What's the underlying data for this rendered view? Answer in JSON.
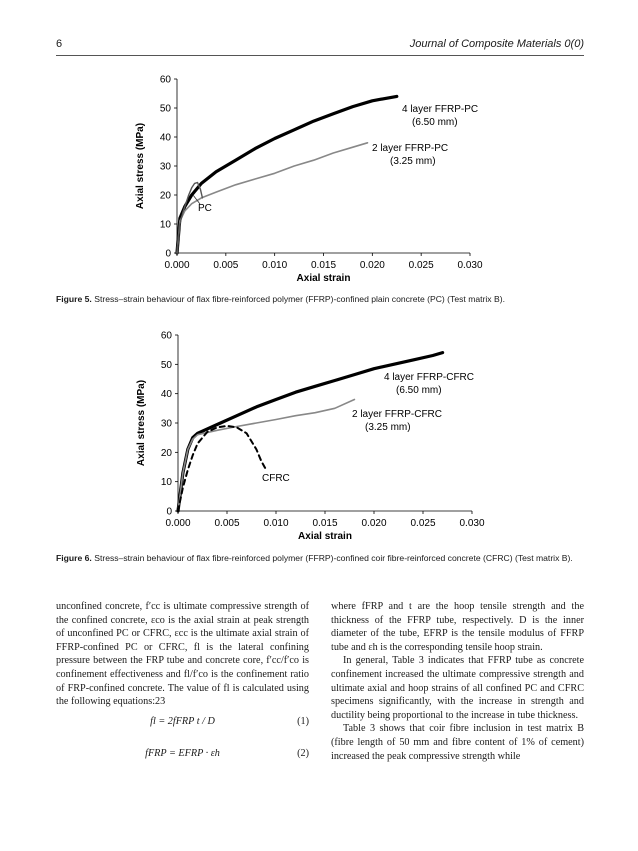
{
  "header": {
    "page_number": "6",
    "journal": "Journal of Composite Materials 0(0)"
  },
  "figure5": {
    "caption_label": "Figure 5.",
    "caption_text": "Stress–strain behaviour of flax fibre-reinforced polymer (FFRP)-confined plain concrete (PC) (Test matrix B).",
    "chart_data": {
      "type": "line",
      "xlabel": "Axial strain",
      "ylabel": "Axial stress (MPa)",
      "xlim": [
        0,
        0.03
      ],
      "ylim": [
        0,
        60
      ],
      "xticks": [
        "0.000",
        "0.005",
        "0.010",
        "0.015",
        "0.020",
        "0.025",
        "0.030"
      ],
      "yticks": [
        "0",
        "10",
        "20",
        "30",
        "40",
        "50",
        "60"
      ],
      "grid": false,
      "series": [
        {
          "name": "4 layer FFRP-PC",
          "label_line2": "(6.50 mm)",
          "color": "#000000",
          "style": "thick",
          "x": [
            0,
            0.0003,
            0.0008,
            0.0015,
            0.0025,
            0.004,
            0.006,
            0.008,
            0.01,
            0.012,
            0.014,
            0.016,
            0.018,
            0.02,
            0.0225
          ],
          "y": [
            0,
            12,
            16,
            20,
            24,
            28,
            32,
            36,
            39.5,
            42.5,
            45.5,
            48,
            50.5,
            52.5,
            54
          ]
        },
        {
          "name": "2 layer FFRP-PC",
          "label_line2": "(3.25 mm)",
          "color": "#888888",
          "style": "medium",
          "x": [
            0,
            0.0003,
            0.0008,
            0.0015,
            0.0025,
            0.004,
            0.006,
            0.008,
            0.01,
            0.012,
            0.014,
            0.016,
            0.018,
            0.0195
          ],
          "y": [
            0,
            11,
            14.5,
            17,
            19,
            21,
            23.5,
            25.5,
            27.5,
            30,
            32,
            34.5,
            36.5,
            38
          ]
        },
        {
          "name": "PC",
          "color": "#555555",
          "style": "thin",
          "x": [
            0,
            0.0003,
            0.0006,
            0.0009,
            0.0012,
            0.0015,
            0.0018,
            0.0021,
            0.0024,
            0.0026
          ],
          "y": [
            0,
            10,
            14,
            17,
            20,
            22.5,
            24,
            24.3,
            22,
            19
          ]
        }
      ]
    }
  },
  "figure6": {
    "caption_label": "Figure 6.",
    "caption_text": "Stress–strain behaviour of flax fibre-reinforced polymer (FFRP)-confined coir fibre-reinforced concrete (CFRC) (Test matrix B).",
    "chart_data": {
      "type": "line",
      "xlabel": "Axial strain",
      "ylabel": "Axial stress (MPa)",
      "xlim": [
        0,
        0.03
      ],
      "ylim": [
        0,
        60
      ],
      "xticks": [
        "0.000",
        "0.005",
        "0.010",
        "0.015",
        "0.020",
        "0.025",
        "0.030"
      ],
      "yticks": [
        "0",
        "10",
        "20",
        "30",
        "40",
        "50",
        "60"
      ],
      "grid": false,
      "series": [
        {
          "name": "4 layer FFRP-CFRC",
          "label_line2": "(6.50 mm)",
          "color": "#000000",
          "style": "thick",
          "x": [
            0,
            0.0005,
            0.001,
            0.0015,
            0.002,
            0.004,
            0.006,
            0.008,
            0.01,
            0.012,
            0.014,
            0.016,
            0.018,
            0.02,
            0.022,
            0.024,
            0.026,
            0.027
          ],
          "y": [
            0,
            13,
            21,
            25,
            26.5,
            29.5,
            32.5,
            35.5,
            38,
            40.5,
            42.5,
            44.5,
            46.5,
            48.5,
            50,
            51.5,
            53,
            54
          ]
        },
        {
          "name": "2 layer FFRP-CFRC",
          "label_line2": "(3.25 mm)",
          "color": "#888888",
          "style": "medium",
          "x": [
            0,
            0.0005,
            0.001,
            0.0015,
            0.002,
            0.004,
            0.006,
            0.008,
            0.01,
            0.012,
            0.014,
            0.016,
            0.018
          ],
          "y": [
            0,
            13,
            21,
            24.5,
            26,
            27.5,
            28.8,
            30,
            31.2,
            32.5,
            33.5,
            35,
            38
          ]
        },
        {
          "name": "CFRC",
          "color": "#000000",
          "style": "dashed",
          "x": [
            0,
            0.0005,
            0.001,
            0.0015,
            0.002,
            0.003,
            0.004,
            0.005,
            0.006,
            0.007,
            0.008,
            0.0085,
            0.009
          ],
          "y": [
            0,
            8,
            14,
            19,
            23,
            27,
            28.5,
            29,
            28.5,
            26.5,
            21,
            17,
            14
          ]
        }
      ]
    }
  },
  "body_left": {
    "para1": "unconfined concrete, f′cc is ultimate compressive strength of the confined concrete, εco is the axial strain at peak strength of unconfined PC or CFRC, εcc is the ultimate axial strain of FFRP-confined PC or CFRC, fl is the lateral confining pressure between the FRP tube and concrete core, f′cc/f′co is confinement effectiveness and fl/f′co is the confinement ratio of FRP-confined concrete. The value of fl is calculated using the following equations:23",
    "eq1": "fl = 2fFRP t / D",
    "eq1_num": "(1)",
    "eq2": "fFRP = EFRP · εh",
    "eq2_num": "(2)"
  },
  "body_right": {
    "para1": "where fFRP and t are the hoop tensile strength and the thickness of the FFRP tube, respectively. D is the inner diameter of the tube, EFRP is the tensile modulus of FFRP tube and εh is the corresponding tensile hoop strain.",
    "para2": "In general, Table 3 indicates that FFRP tube as concrete confinement increased the ultimate compressive strength and ultimate axial and hoop strains of all confined PC and CFRC specimens significantly, with the increase in strength and ductility being proportional to the increase in tube thickness.",
    "para3": "Table 3 shows that coir fibre inclusion in test matrix B (fibre length of 50 mm and fibre content of 1% of cement) increased the peak compressive strength while"
  }
}
